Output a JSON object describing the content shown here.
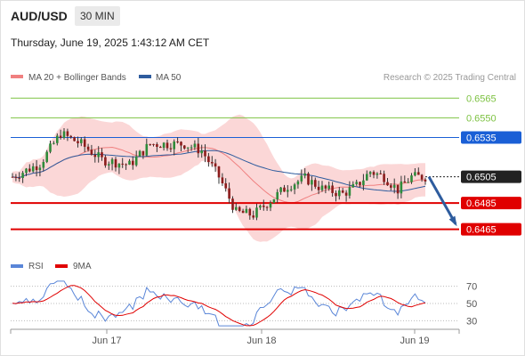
{
  "header": {
    "symbol": "AUD/USD",
    "timeframe": "30 MIN",
    "timestamp": "Thursday, June 19, 2025 1:43:12 AM CET"
  },
  "colors": {
    "bollinger": "#f08080",
    "bollinger_band_fill": "#f9c9c9",
    "ma50": "#2e5c9e",
    "resistance": "#7dc242",
    "pivot": "#1a5fd6",
    "support": "#e00000",
    "current_price": "#222222",
    "arrow": "#2e5c9e",
    "rsi": "#5a86d8",
    "rsi_ma": "#e00000"
  },
  "chart_data": [
    {
      "type": "candlestick",
      "legend": [
        {
          "name": "MA 20 + Bollinger Bands",
          "color": "#f08080"
        },
        {
          "name": "MA 50",
          "color": "#2e5c9e"
        }
      ],
      "watermark": "Research © 2025 Trading Central",
      "x_ticks": [
        "Jun 17",
        "Jun 18",
        "Jun 19"
      ],
      "ylim": [
        0.6462,
        0.6572
      ],
      "levels": [
        {
          "label": "0.6565",
          "value": 0.6565,
          "kind": "resistance"
        },
        {
          "label": "0.6550",
          "value": 0.655,
          "kind": "resistance"
        },
        {
          "label": "0.6535",
          "value": 0.6535,
          "kind": "pivot"
        },
        {
          "label": "0.6505",
          "value": 0.6505,
          "kind": "current"
        },
        {
          "label": "0.6485",
          "value": 0.6485,
          "kind": "support"
        },
        {
          "label": "0.6465",
          "value": 0.6465,
          "kind": "support"
        }
      ],
      "forecast_arrow": {
        "from": 0.6505,
        "to": 0.6465
      }
    },
    {
      "type": "line",
      "legend": [
        {
          "name": "RSI",
          "color": "#5a86d8"
        },
        {
          "name": "9MA",
          "color": "#e00000"
        }
      ],
      "ylim": [
        20,
        80
      ],
      "y_ticks": [
        "70",
        "50",
        "30"
      ]
    }
  ]
}
